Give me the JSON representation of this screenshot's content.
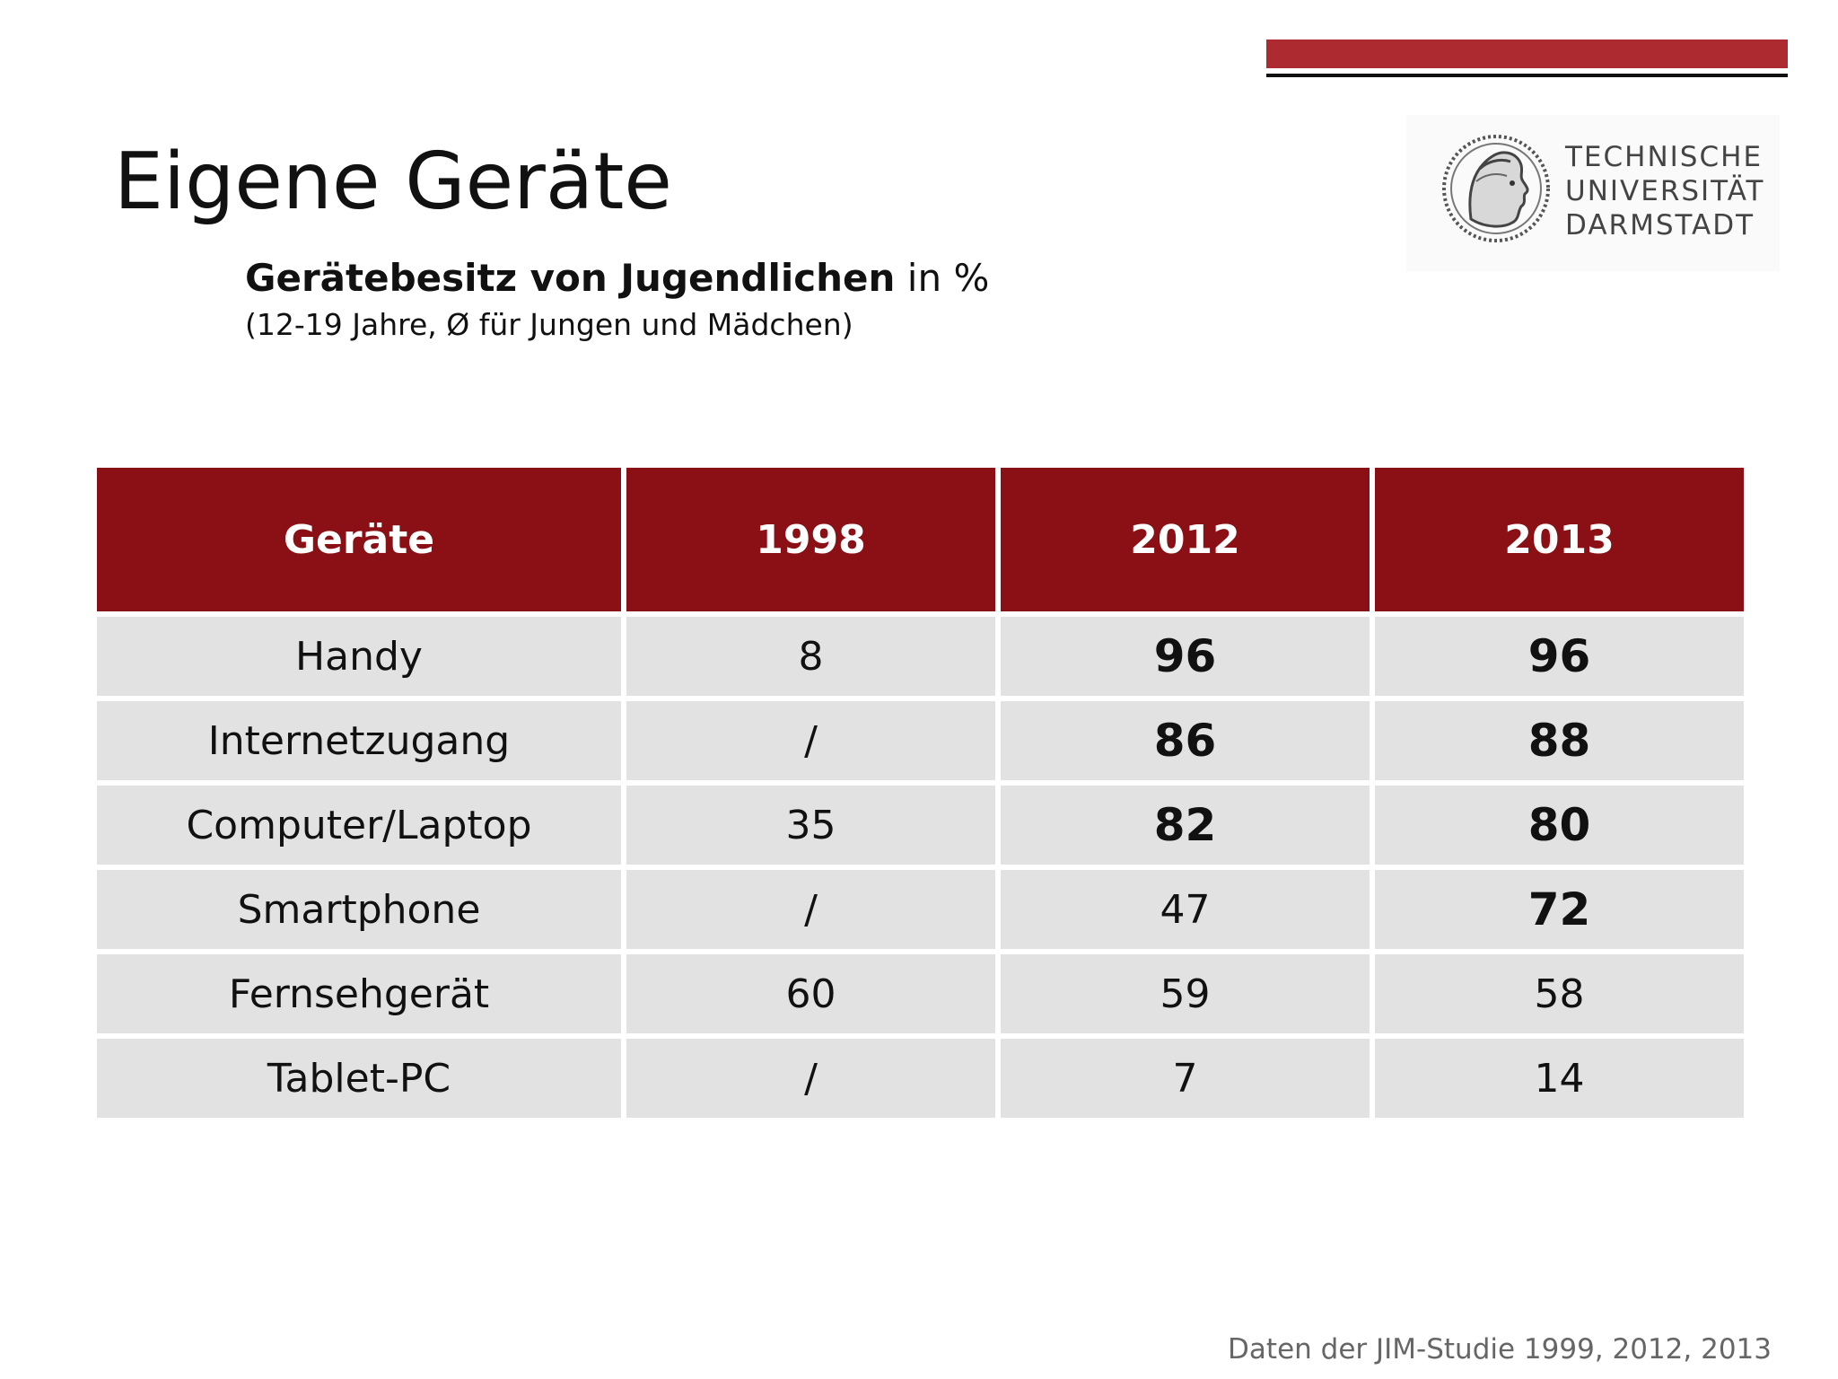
{
  "slide": {
    "title": "Eigene Geräte",
    "subtitle_bold": "Gerätebesitz von Jugendlichen",
    "subtitle_rest": " in %",
    "note": "(12-19 Jahre,  Ø für Jungen und Mädchen)",
    "source": "Daten der JIM-Studie 1999, 2012, 2013"
  },
  "logo": {
    "line1": "TECHNISCHE",
    "line2": "UNIVERSITÄT",
    "line3": "DARMSTADT"
  },
  "colors": {
    "accent_bar": "#ad2a31",
    "header_fill": "#8a1015",
    "cell_fill": "#e2e2e2"
  },
  "table": {
    "headers": [
      "Geräte",
      "1998",
      "2012",
      "2013"
    ],
    "rows": [
      {
        "device": "Handy",
        "y1998": "8",
        "y2012": "96",
        "y2013": "96"
      },
      {
        "device": "Internetzugang",
        "y1998": "/",
        "y2012": "86",
        "y2013": "88"
      },
      {
        "device": "Computer/Laptop",
        "y1998": "35",
        "y2012": "82",
        "y2013": "80"
      },
      {
        "device": "Smartphone",
        "y1998": "/",
        "y2012": "47",
        "y2013": "72"
      },
      {
        "device": "Fernsehgerät",
        "y1998": "60",
        "y2012": "59",
        "y2013": "58"
      },
      {
        "device": "Tablet-PC",
        "y1998": "/",
        "y2012": "7",
        "y2013": "14"
      }
    ]
  }
}
